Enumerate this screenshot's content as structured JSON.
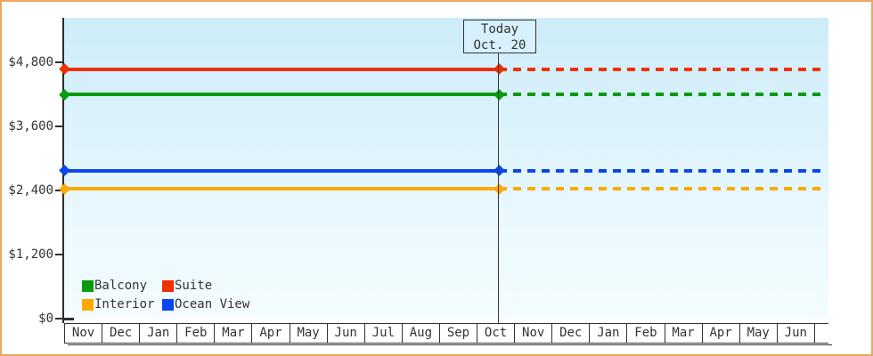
{
  "frame": {
    "border_color": "#eba85e",
    "background": "#ffffff"
  },
  "colors": {
    "axis": "#2e2e2e",
    "text": "#333333",
    "plot_gradient_top": "#cdecfa",
    "plot_gradient_bottom": "#f4fcff",
    "today_box_fill": "#d7f1fc",
    "month_cell_fill": "#ffffff"
  },
  "chart_data": {
    "type": "line",
    "title": "",
    "y_axis": {
      "range": [
        0,
        4800
      ],
      "ticks": [
        {
          "label": "$4,800",
          "value": 4800
        },
        {
          "label": "$3,600",
          "value": 3600
        },
        {
          "label": "$2,400",
          "value": 2400
        },
        {
          "label": "$1,200",
          "value": 1200
        },
        {
          "label": "$0",
          "value": 0
        }
      ]
    },
    "x_axis": {
      "months": [
        "Nov",
        "Dec",
        "Jan",
        "Feb",
        "Mar",
        "Apr",
        "May",
        "Jun",
        "Jul",
        "Aug",
        "Sep",
        "Oct",
        "Nov",
        "Dec",
        "Jan",
        "Feb",
        "Mar",
        "Apr",
        "May",
        "Jun"
      ]
    },
    "series": [
      {
        "name": "Balcony",
        "color": "#0a9b0a",
        "value": 4200
      },
      {
        "name": "Suite",
        "color": "#f13000",
        "value": 4670
      },
      {
        "name": "Interior",
        "color": "#ffa800",
        "value": 2430
      },
      {
        "name": "Ocean View",
        "color": "#0a46ee",
        "value": 2770
      }
    ],
    "series_note": "Each price is flat across all months: solid line with diamond endpoints up to today, dashed projection after today.",
    "today": {
      "label": "Today",
      "date": "Oct. 20",
      "month": "Oct",
      "month_index": 11,
      "fraction_through_month": 0.6
    },
    "legend": {
      "position": "bottom-left",
      "entries": [
        "Balcony",
        "Suite",
        "Interior",
        "Ocean View"
      ]
    },
    "grid": false
  }
}
